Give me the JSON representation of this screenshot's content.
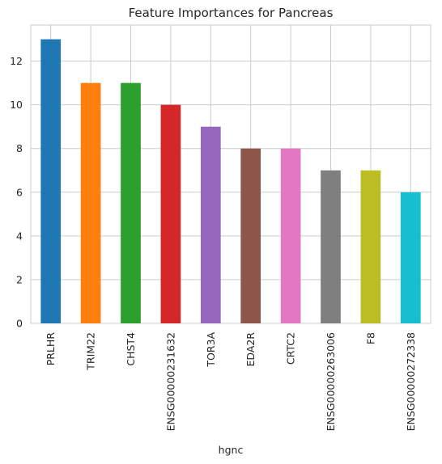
{
  "chart_data": {
    "type": "bar",
    "title": "Feature Importances for Pancreas",
    "xlabel": "hgnc",
    "ylabel": "",
    "categories": [
      "PRLHR",
      "TRIM22",
      "CHST4",
      "ENSG00000231632",
      "TOR3A",
      "EDA2R",
      "CRTC2",
      "ENSG00000263006",
      "F8",
      "ENSG00000272338"
    ],
    "values": [
      13,
      11,
      11,
      10,
      9,
      8,
      8,
      7,
      7,
      6
    ],
    "ylim": [
      0,
      13.65
    ],
    "yticks": [
      0,
      2,
      4,
      6,
      8,
      10,
      12
    ],
    "grid": true,
    "legend": "none",
    "colors": [
      "#1f77b4",
      "#ff7f0e",
      "#2ca02c",
      "#d62728",
      "#9467bd",
      "#8c564b",
      "#e377c2",
      "#7f7f7f",
      "#bcbd22",
      "#17becf"
    ]
  }
}
